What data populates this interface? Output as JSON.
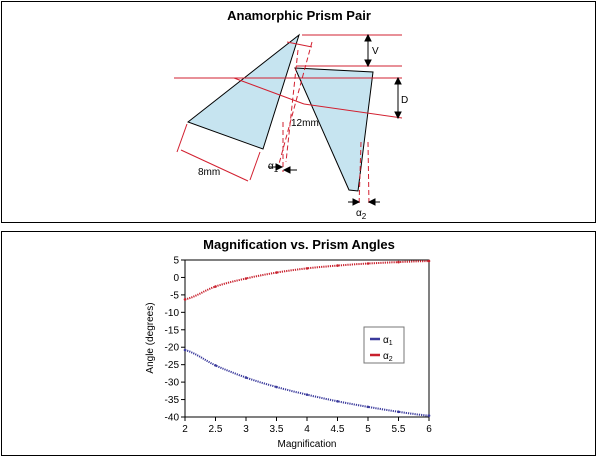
{
  "diagram": {
    "title": "Anamorphic Prism Pair",
    "label_v": "V",
    "label_d": "D",
    "label_12mm": "12mm",
    "label_8mm": "8mm",
    "label_alpha1": "α",
    "label_alpha1_sub": "1",
    "label_alpha2": "α",
    "label_alpha2_sub": "2",
    "colors": {
      "prism_fill": "#c6e4f0",
      "beam": "#d22030",
      "outline": "#000000"
    }
  },
  "chart_data": {
    "type": "line",
    "title": "Magnification vs. Prism Angles",
    "xlabel": "Magnification",
    "ylabel": "Angle (degrees)",
    "xlim": [
      2,
      6
    ],
    "ylim": [
      -40,
      5
    ],
    "xticks": [
      "2",
      "2.5",
      "3",
      "3.5",
      "4",
      "4.5",
      "5",
      "5.5",
      "6"
    ],
    "yticks": [
      "5",
      "0",
      "-5",
      "-10",
      "-15",
      "-20",
      "-25",
      "-30",
      "-35",
      "-40"
    ],
    "legend_position": "right",
    "series": [
      {
        "name": "α",
        "sub": "1",
        "color": "#3a3a9c",
        "x": [
          2,
          2.5,
          3,
          3.5,
          4,
          4.5,
          5,
          5.5,
          6
        ],
        "y": [
          -20.8,
          -25.2,
          -28.7,
          -31.4,
          -33.6,
          -35.5,
          -37.1,
          -38.5,
          -39.6
        ]
      },
      {
        "name": "α",
        "sub": "2",
        "color": "#c8202c",
        "x": [
          2,
          2.5,
          3,
          3.5,
          4,
          4.5,
          5,
          5.5,
          6
        ],
        "y": [
          -6.3,
          -2.6,
          -0.3,
          1.4,
          2.6,
          3.4,
          4.0,
          4.4,
          4.7
        ]
      }
    ]
  }
}
